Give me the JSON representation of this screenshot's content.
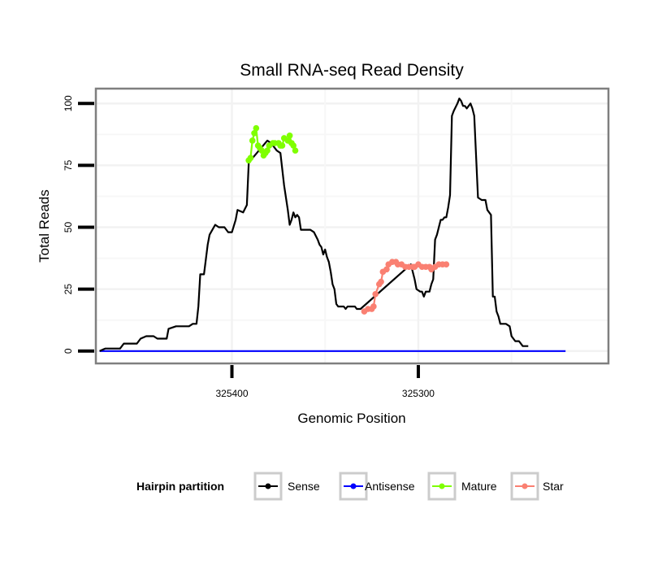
{
  "chart_data": {
    "type": "line",
    "title": "Small RNA-seq Read Density",
    "xlabel": "Genomic Position",
    "ylabel": "Total Reads",
    "x_reversed": true,
    "xlim": [
      325473,
      325198
    ],
    "ylim": [
      -5,
      106
    ],
    "x_ticks": [
      325400,
      325300
    ],
    "x_tick_labels": [
      "325400",
      "325300"
    ],
    "x_minor_gridlines": [
      325350,
      325250
    ],
    "y_ticks": [
      0,
      25,
      50,
      75,
      100
    ],
    "y_tick_labels": [
      "0",
      "25",
      "50",
      "75",
      "100"
    ],
    "grid": true,
    "legend": {
      "title": "Hairpin partition",
      "position": "bottom",
      "entries": [
        {
          "name": "Sense",
          "color": "#000000"
        },
        {
          "name": "Antisense",
          "color": "#0000ff"
        },
        {
          "name": "Mature",
          "color": "#7fff00"
        },
        {
          "name": "Star",
          "color": "#fa8072"
        }
      ]
    },
    "series": [
      {
        "name": "Sense",
        "color": "#000000",
        "markers": false,
        "points": [
          [
            325471,
            0
          ],
          [
            325468,
            1
          ],
          [
            325460,
            1
          ],
          [
            325458,
            3
          ],
          [
            325451,
            3
          ],
          [
            325449,
            5
          ],
          [
            325446,
            6
          ],
          [
            325442,
            6
          ],
          [
            325440,
            5
          ],
          [
            325435,
            5
          ],
          [
            325434,
            9
          ],
          [
            325430,
            10
          ],
          [
            325423,
            10
          ],
          [
            325421,
            11
          ],
          [
            325419,
            11
          ],
          [
            325418,
            18
          ],
          [
            325417,
            31
          ],
          [
            325415,
            31
          ],
          [
            325413,
            43
          ],
          [
            325412,
            47
          ],
          [
            325409,
            51
          ],
          [
            325407,
            50
          ],
          [
            325404,
            50
          ],
          [
            325402,
            48
          ],
          [
            325400,
            48
          ],
          [
            325398,
            53
          ],
          [
            325397,
            57
          ],
          [
            325394,
            56
          ],
          [
            325392,
            59
          ],
          [
            325391,
            76
          ],
          [
            325390,
            77
          ],
          [
            325381,
            85
          ],
          [
            325379,
            84
          ],
          [
            325376,
            81
          ],
          [
            325374,
            80
          ],
          [
            325372,
            67
          ],
          [
            325370,
            57
          ],
          [
            325369,
            51
          ],
          [
            325368,
            53
          ],
          [
            325367,
            56
          ],
          [
            325366,
            54
          ],
          [
            325365,
            55
          ],
          [
            325364,
            54
          ],
          [
            325363,
            49
          ],
          [
            325360,
            49
          ],
          [
            325358,
            49
          ],
          [
            325356,
            48
          ],
          [
            325354,
            45
          ],
          [
            325353,
            43
          ],
          [
            325352,
            42
          ],
          [
            325351,
            39
          ],
          [
            325350,
            41
          ],
          [
            325349,
            38
          ],
          [
            325348,
            36
          ],
          [
            325347,
            32
          ],
          [
            325346,
            27
          ],
          [
            325345,
            25
          ],
          [
            325344,
            19
          ],
          [
            325343,
            18
          ],
          [
            325342,
            18
          ],
          [
            325340,
            18
          ],
          [
            325339,
            17
          ],
          [
            325338,
            18
          ],
          [
            325337,
            18
          ],
          [
            325335,
            18
          ],
          [
            325334,
            18
          ],
          [
            325333,
            17
          ],
          [
            325331,
            17
          ],
          [
            325304,
            35
          ],
          [
            325302,
            29
          ],
          [
            325301,
            25
          ],
          [
            325299,
            24
          ],
          [
            325298,
            24
          ],
          [
            325297,
            22
          ],
          [
            325296,
            24
          ],
          [
            325294,
            24
          ],
          [
            325293,
            27
          ],
          [
            325292,
            29
          ],
          [
            325291,
            45
          ],
          [
            325290,
            47
          ],
          [
            325288,
            53
          ],
          [
            325287,
            53
          ],
          [
            325286,
            54
          ],
          [
            325285,
            54
          ],
          [
            325284,
            58
          ],
          [
            325283,
            63
          ],
          [
            325282,
            95
          ],
          [
            325281,
            97
          ],
          [
            325279,
            100
          ],
          [
            325278,
            102
          ],
          [
            325277,
            101
          ],
          [
            325276,
            99
          ],
          [
            325275,
            99
          ],
          [
            325274,
            98
          ],
          [
            325273,
            99
          ],
          [
            325272,
            100
          ],
          [
            325271,
            98
          ],
          [
            325270,
            95
          ],
          [
            325268,
            62
          ],
          [
            325266,
            61
          ],
          [
            325264,
            61
          ],
          [
            325263,
            57
          ],
          [
            325261,
            55
          ],
          [
            325260,
            22
          ],
          [
            325259,
            22
          ],
          [
            325258,
            16
          ],
          [
            325257,
            14
          ],
          [
            325256,
            11
          ],
          [
            325253,
            11
          ],
          [
            325251,
            10
          ],
          [
            325250,
            6
          ],
          [
            325248,
            4
          ],
          [
            325246,
            4
          ],
          [
            325244,
            2
          ],
          [
            325241,
            2
          ]
        ]
      },
      {
        "name": "Antisense",
        "color": "#0000ff",
        "markers": false,
        "points": [
          [
            325471,
            0
          ],
          [
            325221,
            0
          ]
        ]
      },
      {
        "name": "Mature",
        "color": "#7fff00",
        "markers": true,
        "points": [
          [
            325391,
            77
          ],
          [
            325390,
            78
          ],
          [
            325389,
            85
          ],
          [
            325388,
            88
          ],
          [
            325387,
            90
          ],
          [
            325386,
            83
          ],
          [
            325385,
            82
          ],
          [
            325384,
            81
          ],
          [
            325383,
            79
          ],
          [
            325382,
            80
          ],
          [
            325381,
            81
          ],
          [
            325380,
            83
          ],
          [
            325378,
            84
          ],
          [
            325377,
            84
          ],
          [
            325375,
            84
          ],
          [
            325374,
            83
          ],
          [
            325373,
            83
          ],
          [
            325372,
            86
          ],
          [
            325370,
            85
          ],
          [
            325369,
            87
          ],
          [
            325368,
            84
          ],
          [
            325367,
            83
          ],
          [
            325366,
            81
          ]
        ]
      },
      {
        "name": "Star",
        "color": "#fa8072",
        "markers": true,
        "points": [
          [
            325329,
            16
          ],
          [
            325327,
            17
          ],
          [
            325325,
            17
          ],
          [
            325324,
            18
          ],
          [
            325323,
            23
          ],
          [
            325321,
            27
          ],
          [
            325320,
            28
          ],
          [
            325319,
            32
          ],
          [
            325317,
            33
          ],
          [
            325316,
            35
          ],
          [
            325314,
            36
          ],
          [
            325312,
            36
          ],
          [
            325311,
            35
          ],
          [
            325309,
            35
          ],
          [
            325307,
            34
          ],
          [
            325305,
            34
          ],
          [
            325303,
            34
          ],
          [
            325302,
            34
          ],
          [
            325300,
            35
          ],
          [
            325298,
            34
          ],
          [
            325296,
            34
          ],
          [
            325294,
            34
          ],
          [
            325293,
            33
          ],
          [
            325291,
            34
          ],
          [
            325289,
            35
          ],
          [
            325287,
            35
          ],
          [
            325285,
            35
          ]
        ]
      }
    ]
  }
}
